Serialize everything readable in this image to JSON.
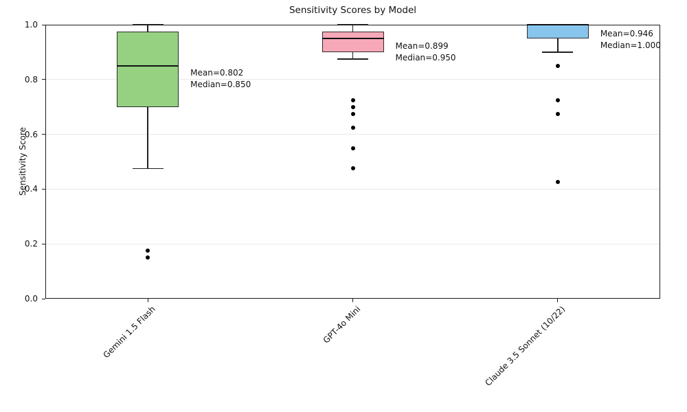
{
  "chart_data": {
    "type": "box",
    "title": "Sensitivity Scores by Model",
    "ylabel": "Sensitivity Score",
    "xlabel": "",
    "ylim": [
      0.0,
      1.0
    ],
    "grid": "horizontal-light-gray",
    "legend": "none",
    "yticks": [
      {
        "value": 0.0,
        "label": "0.0"
      },
      {
        "value": 0.2,
        "label": "0.2"
      },
      {
        "value": 0.4,
        "label": "0.4"
      },
      {
        "value": 0.6,
        "label": "0.6"
      },
      {
        "value": 0.8,
        "label": "0.8"
      },
      {
        "value": 1.0,
        "label": "1.0"
      }
    ],
    "categories": [
      "Gemini 1.5 Flash",
      "GPT-4o Mini",
      "Claude 3.5 Sonnet (10/22)"
    ],
    "series": [
      {
        "category": "Gemini 1.5 Flash",
        "color": "#95d181",
        "whisker_low": 0.475,
        "q1": 0.7,
        "median": 0.85,
        "q3": 0.975,
        "whisker_high": 1.0,
        "mean": 0.802,
        "outliers": [
          0.175,
          0.15
        ],
        "annotation_lines": [
          "Mean=0.802",
          "Median=0.850"
        ]
      },
      {
        "category": "GPT-4o Mini",
        "color": "#f7a8b8",
        "whisker_low": 0.875,
        "q1": 0.9,
        "median": 0.95,
        "q3": 0.975,
        "whisker_high": 1.0,
        "mean": 0.899,
        "outliers": [
          0.725,
          0.7,
          0.675,
          0.625,
          0.55,
          0.475
        ],
        "annotation_lines": [
          "Mean=0.899",
          "Median=0.950"
        ]
      },
      {
        "category": "Claude 3.5 Sonnet (10/22)",
        "color": "#87c5ec",
        "whisker_low": 0.9,
        "q1": 0.95,
        "median": 1.0,
        "q3": 1.0,
        "whisker_high": 1.0,
        "mean": 0.946,
        "outliers": [
          0.85,
          0.725,
          0.675,
          0.425
        ],
        "annotation_lines": [
          "Mean=0.946",
          "Median=1.000"
        ]
      }
    ]
  }
}
